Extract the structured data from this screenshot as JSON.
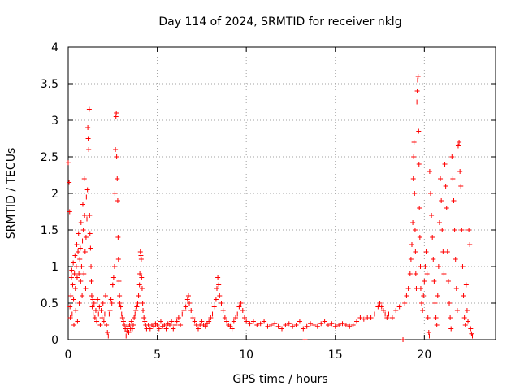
{
  "chart_data": {
    "type": "scatter",
    "title": "Day 114 of 2024, SRMTID for receiver nklg",
    "xlabel": "GPS time / hours",
    "ylabel": "SRMTID / TECUs",
    "xlim": [
      0,
      24
    ],
    "ylim": [
      0,
      4
    ],
    "xticks": [
      0,
      5,
      10,
      15,
      20
    ],
    "yticks": [
      0,
      0.5,
      1,
      1.5,
      2,
      2.5,
      3,
      3.5,
      4
    ],
    "xtick_labels": [
      "0",
      "5",
      "10",
      "15",
      "20"
    ],
    "ytick_labels": [
      "0",
      "0.5",
      "1",
      "1.5",
      "2",
      "2.5",
      "3",
      "3.5",
      "4"
    ],
    "grid": true,
    "marker": "+",
    "color": "#ff0000",
    "series": [
      {
        "name": "nklg",
        "points": [
          [
            0.0,
            2.42
          ],
          [
            0.05,
            2.15
          ],
          [
            0.08,
            1.75
          ],
          [
            0.1,
            0.45
          ],
          [
            0.12,
            0.3
          ],
          [
            0.15,
            0.6
          ],
          [
            0.18,
            0.85
          ],
          [
            0.2,
            0.95
          ],
          [
            0.22,
            0.35
          ],
          [
            0.25,
            0.75
          ],
          [
            0.28,
            1.05
          ],
          [
            0.3,
            0.55
          ],
          [
            0.32,
            0.2
          ],
          [
            0.35,
            0.9
          ],
          [
            0.38,
            1.15
          ],
          [
            0.4,
            0.7
          ],
          [
            0.42,
            0.4
          ],
          [
            0.45,
            1.0
          ],
          [
            0.48,
            1.3
          ],
          [
            0.5,
            0.85
          ],
          [
            0.52,
            0.25
          ],
          [
            0.55,
            1.2
          ],
          [
            0.58,
            1.45
          ],
          [
            0.6,
            0.9
          ],
          [
            0.62,
            0.5
          ],
          [
            0.65,
            1.1
          ],
          [
            0.68,
            1.25
          ],
          [
            0.7,
            0.8
          ],
          [
            0.72,
            1.6
          ],
          [
            0.75,
            1.0
          ],
          [
            0.78,
            0.6
          ],
          [
            0.8,
            1.35
          ],
          [
            0.82,
            1.85
          ],
          [
            0.85,
            1.5
          ],
          [
            0.88,
            0.9
          ],
          [
            0.9,
            2.2
          ],
          [
            0.92,
            1.7
          ],
          [
            0.95,
            1.2
          ],
          [
            0.98,
            0.7
          ],
          [
            1.0,
            1.4
          ],
          [
            1.02,
            1.95
          ],
          [
            1.05,
            1.65
          ],
          [
            1.08,
            2.05
          ],
          [
            1.1,
            2.9
          ],
          [
            1.12,
            2.75
          ],
          [
            1.15,
            2.6
          ],
          [
            1.18,
            3.15
          ],
          [
            1.2,
            1.7
          ],
          [
            1.22,
            1.45
          ],
          [
            1.25,
            1.25
          ],
          [
            1.28,
            1.0
          ],
          [
            1.3,
            0.8
          ],
          [
            1.32,
            0.6
          ],
          [
            1.35,
            0.45
          ],
          [
            1.38,
            0.55
          ],
          [
            1.4,
            0.35
          ],
          [
            1.45,
            0.5
          ],
          [
            1.5,
            0.3
          ],
          [
            1.55,
            0.4
          ],
          [
            1.6,
            0.25
          ],
          [
            1.65,
            0.55
          ],
          [
            1.7,
            0.35
          ],
          [
            1.75,
            0.45
          ],
          [
            1.8,
            0.2
          ],
          [
            1.85,
            0.4
          ],
          [
            1.9,
            0.3
          ],
          [
            1.95,
            0.5
          ],
          [
            2.0,
            0.25
          ],
          [
            2.05,
            0.35
          ],
          [
            2.1,
            0.6
          ],
          [
            2.15,
            0.2
          ],
          [
            2.2,
            0.1
          ],
          [
            2.25,
            0.05
          ],
          [
            2.3,
            0.35
          ],
          [
            2.35,
            0.4
          ],
          [
            2.4,
            0.55
          ],
          [
            2.45,
            0.5
          ],
          [
            2.5,
            0.75
          ],
          [
            2.55,
            0.85
          ],
          [
            2.6,
            1.0
          ],
          [
            2.62,
            2.0
          ],
          [
            2.65,
            2.6
          ],
          [
            2.68,
            3.05
          ],
          [
            2.7,
            3.1
          ],
          [
            2.72,
            2.5
          ],
          [
            2.75,
            2.2
          ],
          [
            2.78,
            1.9
          ],
          [
            2.8,
            1.4
          ],
          [
            2.82,
            1.1
          ],
          [
            2.85,
            0.8
          ],
          [
            2.88,
            0.6
          ],
          [
            2.9,
            0.5
          ],
          [
            2.95,
            0.45
          ],
          [
            3.0,
            0.35
          ],
          [
            3.05,
            0.3
          ],
          [
            3.1,
            0.25
          ],
          [
            3.15,
            0.2
          ],
          [
            3.2,
            0.15
          ],
          [
            3.25,
            0.05
          ],
          [
            3.3,
            0.12
          ],
          [
            3.35,
            0.18
          ],
          [
            3.4,
            0.1
          ],
          [
            3.45,
            0.2
          ],
          [
            3.5,
            0.15
          ],
          [
            3.55,
            0.25
          ],
          [
            3.6,
            0.15
          ],
          [
            3.65,
            0.2
          ],
          [
            3.7,
            0.3
          ],
          [
            3.75,
            0.35
          ],
          [
            3.8,
            0.4
          ],
          [
            3.85,
            0.45
          ],
          [
            3.9,
            0.5
          ],
          [
            3.95,
            0.6
          ],
          [
            4.0,
            0.75
          ],
          [
            4.02,
            0.9
          ],
          [
            4.05,
            1.2
          ],
          [
            4.08,
            1.15
          ],
          [
            4.1,
            1.1
          ],
          [
            4.12,
            0.85
          ],
          [
            4.15,
            0.7
          ],
          [
            4.18,
            0.5
          ],
          [
            4.2,
            0.4
          ],
          [
            4.25,
            0.3
          ],
          [
            4.3,
            0.25
          ],
          [
            4.35,
            0.2
          ],
          [
            4.4,
            0.15
          ],
          [
            4.5,
            0.2
          ],
          [
            4.6,
            0.15
          ],
          [
            4.7,
            0.2
          ],
          [
            4.8,
            0.18
          ],
          [
            4.9,
            0.22
          ],
          [
            5.0,
            0.2
          ],
          [
            5.1,
            0.15
          ],
          [
            5.2,
            0.25
          ],
          [
            5.3,
            0.18
          ],
          [
            5.4,
            0.2
          ],
          [
            5.5,
            0.15
          ],
          [
            5.6,
            0.22
          ],
          [
            5.7,
            0.2
          ],
          [
            5.8,
            0.25
          ],
          [
            5.9,
            0.15
          ],
          [
            6.0,
            0.2
          ],
          [
            6.1,
            0.25
          ],
          [
            6.2,
            0.3
          ],
          [
            6.3,
            0.2
          ],
          [
            6.4,
            0.35
          ],
          [
            6.5,
            0.4
          ],
          [
            6.6,
            0.45
          ],
          [
            6.7,
            0.55
          ],
          [
            6.75,
            0.6
          ],
          [
            6.8,
            0.5
          ],
          [
            6.9,
            0.4
          ],
          [
            7.0,
            0.3
          ],
          [
            7.1,
            0.25
          ],
          [
            7.2,
            0.2
          ],
          [
            7.3,
            0.15
          ],
          [
            7.4,
            0.2
          ],
          [
            7.5,
            0.25
          ],
          [
            7.6,
            0.2
          ],
          [
            7.7,
            0.18
          ],
          [
            7.8,
            0.22
          ],
          [
            7.9,
            0.25
          ],
          [
            8.0,
            0.3
          ],
          [
            8.1,
            0.35
          ],
          [
            8.2,
            0.45
          ],
          [
            8.3,
            0.55
          ],
          [
            8.35,
            0.7
          ],
          [
            8.4,
            0.85
          ],
          [
            8.45,
            0.75
          ],
          [
            8.5,
            0.6
          ],
          [
            8.6,
            0.5
          ],
          [
            8.7,
            0.4
          ],
          [
            8.8,
            0.3
          ],
          [
            8.9,
            0.25
          ],
          [
            9.0,
            0.2
          ],
          [
            9.1,
            0.18
          ],
          [
            9.2,
            0.15
          ],
          [
            9.3,
            0.25
          ],
          [
            9.4,
            0.3
          ],
          [
            9.5,
            0.35
          ],
          [
            9.6,
            0.45
          ],
          [
            9.7,
            0.5
          ],
          [
            9.8,
            0.4
          ],
          [
            9.9,
            0.3
          ],
          [
            10.0,
            0.25
          ],
          [
            10.2,
            0.22
          ],
          [
            10.4,
            0.25
          ],
          [
            10.6,
            0.2
          ],
          [
            10.8,
            0.22
          ],
          [
            11.0,
            0.25
          ],
          [
            11.2,
            0.18
          ],
          [
            11.4,
            0.2
          ],
          [
            11.6,
            0.22
          ],
          [
            11.8,
            0.18
          ],
          [
            12.0,
            0.15
          ],
          [
            12.2,
            0.2
          ],
          [
            12.4,
            0.22
          ],
          [
            12.6,
            0.18
          ],
          [
            12.8,
            0.2
          ],
          [
            13.0,
            0.25
          ],
          [
            13.2,
            0.15
          ],
          [
            13.3,
            0.0
          ],
          [
            13.4,
            0.18
          ],
          [
            13.6,
            0.22
          ],
          [
            13.8,
            0.2
          ],
          [
            14.0,
            0.18
          ],
          [
            14.2,
            0.22
          ],
          [
            14.4,
            0.25
          ],
          [
            14.6,
            0.2
          ],
          [
            14.8,
            0.22
          ],
          [
            15.0,
            0.18
          ],
          [
            15.2,
            0.2
          ],
          [
            15.4,
            0.22
          ],
          [
            15.6,
            0.2
          ],
          [
            15.8,
            0.18
          ],
          [
            16.0,
            0.2
          ],
          [
            16.2,
            0.25
          ],
          [
            16.4,
            0.3
          ],
          [
            16.6,
            0.28
          ],
          [
            16.8,
            0.3
          ],
          [
            17.0,
            0.3
          ],
          [
            17.2,
            0.35
          ],
          [
            17.4,
            0.45
          ],
          [
            17.5,
            0.5
          ],
          [
            17.6,
            0.45
          ],
          [
            17.7,
            0.4
          ],
          [
            17.8,
            0.35
          ],
          [
            17.9,
            0.3
          ],
          [
            18.0,
            0.35
          ],
          [
            18.2,
            0.3
          ],
          [
            18.4,
            0.4
          ],
          [
            18.6,
            0.45
          ],
          [
            18.8,
            0.0
          ],
          [
            18.9,
            0.5
          ],
          [
            19.0,
            0.6
          ],
          [
            19.1,
            0.7
          ],
          [
            19.2,
            0.9
          ],
          [
            19.25,
            1.1
          ],
          [
            19.3,
            1.3
          ],
          [
            19.35,
            1.6
          ],
          [
            19.38,
            2.2
          ],
          [
            19.4,
            2.5
          ],
          [
            19.42,
            2.7
          ],
          [
            19.45,
            2.0
          ],
          [
            19.48,
            1.5
          ],
          [
            19.5,
            1.2
          ],
          [
            19.52,
            0.9
          ],
          [
            19.55,
            0.7
          ],
          [
            19.58,
            3.25
          ],
          [
            19.6,
            3.4
          ],
          [
            19.62,
            3.55
          ],
          [
            19.65,
            3.6
          ],
          [
            19.68,
            2.85
          ],
          [
            19.7,
            2.4
          ],
          [
            19.72,
            1.8
          ],
          [
            19.75,
            1.4
          ],
          [
            19.78,
            1.0
          ],
          [
            19.8,
            0.7
          ],
          [
            19.85,
            0.5
          ],
          [
            19.9,
            0.4
          ],
          [
            19.95,
            0.6
          ],
          [
            20.0,
            0.8
          ],
          [
            20.05,
            1.0
          ],
          [
            20.1,
            1.2
          ],
          [
            20.15,
            0.9
          ],
          [
            20.2,
            0.3
          ],
          [
            20.25,
            0.1
          ],
          [
            20.28,
            0.05
          ],
          [
            20.3,
            2.3
          ],
          [
            20.35,
            2.0
          ],
          [
            20.4,
            1.7
          ],
          [
            20.45,
            1.4
          ],
          [
            20.5,
            1.1
          ],
          [
            20.55,
            0.8
          ],
          [
            20.6,
            0.5
          ],
          [
            20.65,
            0.3
          ],
          [
            20.7,
            0.2
          ],
          [
            20.75,
            0.6
          ],
          [
            20.8,
            1.0
          ],
          [
            20.85,
            1.6
          ],
          [
            20.9,
            2.2
          ],
          [
            20.95,
            1.9
          ],
          [
            21.0,
            1.5
          ],
          [
            21.05,
            1.2
          ],
          [
            21.1,
            0.9
          ],
          [
            21.15,
            2.4
          ],
          [
            21.2,
            2.1
          ],
          [
            21.25,
            1.8
          ],
          [
            21.3,
            1.2
          ],
          [
            21.35,
            0.8
          ],
          [
            21.4,
            0.5
          ],
          [
            21.45,
            0.3
          ],
          [
            21.5,
            0.15
          ],
          [
            21.55,
            2.5
          ],
          [
            21.6,
            2.2
          ],
          [
            21.65,
            1.9
          ],
          [
            21.7,
            1.5
          ],
          [
            21.75,
            1.1
          ],
          [
            21.8,
            0.7
          ],
          [
            21.85,
            0.4
          ],
          [
            21.9,
            2.65
          ],
          [
            21.95,
            2.7
          ],
          [
            22.0,
            2.3
          ],
          [
            22.05,
            2.1
          ],
          [
            22.1,
            1.5
          ],
          [
            22.15,
            1.0
          ],
          [
            22.2,
            0.6
          ],
          [
            22.25,
            0.3
          ],
          [
            22.3,
            0.2
          ],
          [
            22.35,
            0.75
          ],
          [
            22.4,
            0.4
          ],
          [
            22.45,
            0.25
          ],
          [
            22.5,
            1.5
          ],
          [
            22.55,
            1.3
          ],
          [
            22.6,
            0.15
          ],
          [
            22.65,
            0.08
          ],
          [
            22.7,
            0.05
          ]
        ]
      }
    ]
  }
}
